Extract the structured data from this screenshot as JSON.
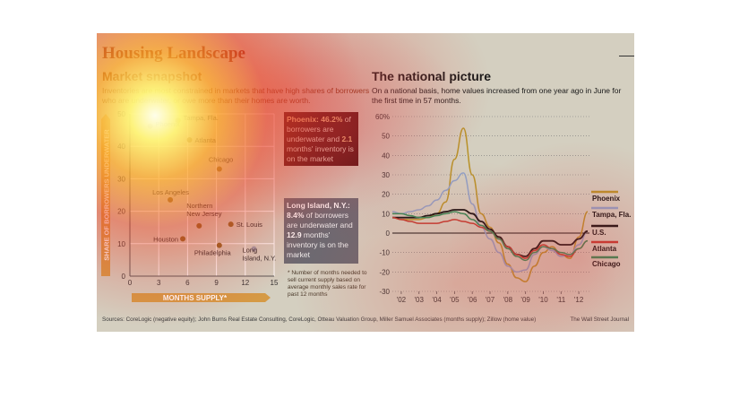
{
  "header": {
    "title": "Housing Landscape",
    "left_subtitle": "Market snapshot",
    "left_intro": "Inventories are most constrained in markets that have high shares of borrowers who are underwater, or owe more than their homes are worth.",
    "right_subtitle": "The national picture",
    "right_intro": "On a national basis, home values increased from one year ago in June for the first time in 57 months."
  },
  "callouts": {
    "phoenix_name": "Phoenix:",
    "phoenix_share": "46.2%",
    "phoenix_mid": "of borrowers are underwater and",
    "phoenix_months": "2.1",
    "phoenix_end": "months' inventory is on the market",
    "li_name": "Long Island, N.Y.:",
    "li_share": "8.4%",
    "li_mid": "of borrowers are underwater and",
    "li_months": "12.9",
    "li_end": "months' inventory is on the market"
  },
  "footnote": "* Number of months needed to sell current supply based on average monthly sales rate for past 12 months",
  "sources": "Sources: CoreLogic (negative equity); John Burns Real Estate Consulting, CoreLogic, Otteau Valuation Group, Miller Samuel Associates (months supply); Zillow (home value)",
  "credit": "The Wall Street Journal",
  "colors": {
    "accent": "#8c2a12",
    "dot": "#8a6420",
    "phoenix": "#b8932a",
    "tampa": "#8fa2c8",
    "us": "#111111",
    "atlanta": "#c03a30",
    "chicago": "#2e8b57"
  },
  "chart_data": [
    {
      "type": "scatter",
      "xlabel": "MONTHS SUPPLY*",
      "ylabel": "SHARE OF BORROWERS UNDERWATER",
      "xlim": [
        0,
        15
      ],
      "ylim": [
        0,
        50
      ],
      "xticks": [
        0,
        3,
        6,
        9,
        12,
        15
      ],
      "yticks": [
        0,
        10,
        20,
        30,
        40,
        50
      ],
      "grid": true,
      "points": [
        {
          "label": "Phoenix",
          "x": 2.1,
          "y": 46.2
        },
        {
          "label": "Tampa, Fla.",
          "x": 5,
          "y": 48
        },
        {
          "label": "Atlanta",
          "x": 6.2,
          "y": 42
        },
        {
          "label": "Chicago",
          "x": 9.3,
          "y": 33
        },
        {
          "label": "Los Angeles",
          "x": 4.2,
          "y": 23.5
        },
        {
          "label": "Northern New Jersey",
          "x": 7.2,
          "y": 15.5
        },
        {
          "label": "St. Louis",
          "x": 10.5,
          "y": 16
        },
        {
          "label": "Houston",
          "x": 5.5,
          "y": 11.5
        },
        {
          "label": "Philadelphia",
          "x": 9.3,
          "y": 9.5
        },
        {
          "label": "Long Island, N.Y.",
          "x": 12.9,
          "y": 8.4
        }
      ]
    },
    {
      "type": "line",
      "ylabel": "",
      "ylim": [
        -30,
        60
      ],
      "yticks": [
        "60%",
        "50",
        "40",
        "30",
        "20",
        "10",
        "0",
        "-10",
        "-20",
        "-30"
      ],
      "xticks": [
        "'02",
        "'03",
        "'04",
        "'05",
        "'06",
        "'07",
        "'08",
        "'09",
        "'10",
        "'11",
        "'12"
      ],
      "x": [
        2001.5,
        2002,
        2002.5,
        2003,
        2003.5,
        2004,
        2004.5,
        2005,
        2005.5,
        2006,
        2006.5,
        2007,
        2007.5,
        2008,
        2008.5,
        2009,
        2009.5,
        2010,
        2010.5,
        2011,
        2011.5,
        2012,
        2012.5
      ],
      "series": [
        {
          "name": "Phoenix",
          "values": [
            8,
            7,
            7,
            7,
            8,
            10,
            16,
            38,
            54,
            30,
            10,
            3,
            -5,
            -16,
            -23,
            -25,
            -17,
            -10,
            -7,
            -11,
            -13,
            -2,
            11
          ]
        },
        {
          "name": "Tampa, Fla.",
          "values": [
            11,
            10,
            11,
            12,
            14,
            17,
            22,
            27,
            31,
            15,
            3,
            -3,
            -10,
            -17,
            -20,
            -19,
            -11,
            -7,
            -9,
            -12,
            -11,
            -6,
            1
          ]
        },
        {
          "name": "U.S.",
          "values": [
            8,
            8,
            8,
            8,
            9,
            10,
            11,
            12,
            12,
            10,
            6,
            2,
            -2,
            -7,
            -11,
            -12,
            -8,
            -4,
            -4,
            -6,
            -6,
            -3,
            1
          ]
        },
        {
          "name": "Atlanta",
          "values": [
            8,
            7,
            6,
            5,
            5,
            5,
            6,
            7,
            6,
            5,
            3,
            1,
            -3,
            -7,
            -11,
            -13,
            -9,
            -6,
            -8,
            -11,
            -12,
            -8,
            -4
          ]
        },
        {
          "name": "Chicago",
          "values": [
            10,
            10,
            9,
            8,
            8,
            9,
            10,
            11,
            10,
            7,
            4,
            1,
            -3,
            -8,
            -12,
            -14,
            -10,
            -7,
            -8,
            -10,
            -11,
            -8,
            -4
          ]
        }
      ]
    }
  ]
}
